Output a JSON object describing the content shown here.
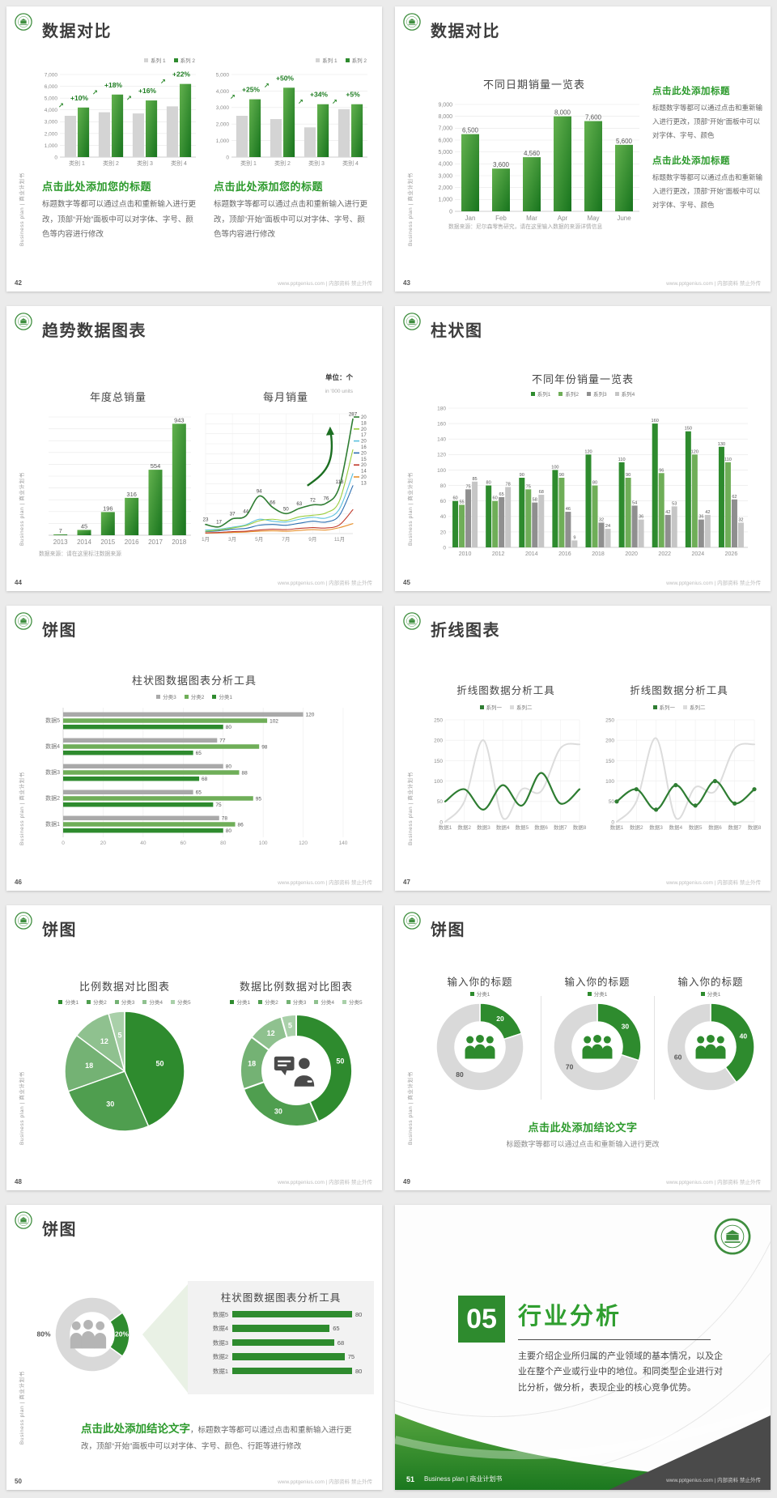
{
  "footer_url": "www.pptgenius.com | 内部资料 禁止外传",
  "sidebar_text": "Business plan | 商业计划书",
  "colors": {
    "green": "#2e8b2e",
    "green_medium": "#6fae58",
    "gray_bar": "#d4d4d4",
    "gray_dark": "#8f8f8f",
    "heading_green": "#2c9a2c",
    "dark_band": "#4a4a4a"
  },
  "slides": [
    {
      "page_num": "42",
      "title": "数据对比",
      "blocks": [
        {
          "heading": "点击此处添加您的标题",
          "body": "标题数字等都可以通过点击和重新输入进行更改，顶部“开始”面板中可以对字体、字号、颜色等内容进行修改"
        },
        {
          "heading": "点击此处添加您的标题",
          "body": "标题数字等都可以通过点击和重新输入进行更改，顶部“开始”面板中可以对字体、字号、颜色等内容进行修改"
        }
      ],
      "chart_data": [
        {
          "type": "bar",
          "legend": [
            "系列 1",
            "系列 2"
          ],
          "ylim": [
            0,
            7000
          ],
          "ystep": 1000,
          "categories": [
            "类别 1",
            "类别 2",
            "类别 3",
            "类别 4"
          ],
          "series": [
            {
              "name": "系列 1",
              "color": "#d4d4d4",
              "values": [
                3500,
                3800,
                3700,
                4300
              ]
            },
            {
              "name": "系列 2",
              "color": "gradient-green",
              "values": [
                4200,
                5300,
                4800,
                6200
              ]
            }
          ],
          "percent_labels": [
            "+10%",
            "+18%",
            "+16%",
            "+22%"
          ]
        },
        {
          "type": "bar",
          "legend": [
            "系列 1",
            "系列 2"
          ],
          "ylim": [
            0,
            5000
          ],
          "ystep": 1000,
          "categories": [
            "类别 1",
            "类别 2",
            "类别 3",
            "类别 4"
          ],
          "series": [
            {
              "name": "系列 1",
              "color": "#d4d4d4",
              "values": [
                2500,
                2300,
                1800,
                2900
              ]
            },
            {
              "name": "系列 2",
              "color": "gradient-green",
              "values": [
                3500,
                4200,
                3200,
                3200
              ]
            }
          ],
          "percent_labels": [
            "+25%",
            "+50%",
            "+34%",
            "+5%"
          ]
        }
      ]
    },
    {
      "page_num": "43",
      "title": "数据对比",
      "note": "数据来源：尼尔森零售研究，请在这里输入数据的来源详情信息",
      "blocks": [
        {
          "heading": "点击此处添加标题",
          "body": "标题数字等都可以通过点击和重新输入进行更改，顶部“开始”面板中可以对字体、字号、颜色"
        },
        {
          "heading": "点击此处添加标题",
          "body": "标题数字等都可以通过点击和重新输入进行更改，顶部“开始”面板中可以对字体、字号、颜色"
        }
      ],
      "chart_data": {
        "type": "bar",
        "title": "不同日期销量一览表",
        "ylim": [
          0,
          9000
        ],
        "ystep": 1000,
        "categories": [
          "Jan",
          "Feb",
          "Mar",
          "Apr",
          "May",
          "June"
        ],
        "values": [
          6500,
          3600,
          4560,
          8000,
          7600,
          5600
        ],
        "value_labels": [
          "6,500",
          "3,600",
          "4,560",
          "8,000",
          "7,600",
          "5,600"
        ]
      }
    },
    {
      "page_num": "44",
      "title": "趋势数据图表",
      "unit_label": "单位：个",
      "unit_sub": "in '000 units",
      "note": "数据来源：请在这里标注数据来源",
      "chart_data": [
        {
          "type": "bar",
          "title": "年度总销量",
          "ylim": [
            0,
            1000
          ],
          "ystep": 100,
          "categories": [
            "2013",
            "2014",
            "2015",
            "2016",
            "2017",
            "2018"
          ],
          "values": [
            7,
            45,
            196,
            316,
            554,
            943
          ]
        },
        {
          "type": "line",
          "title": "每月销量",
          "ylim": [
            0,
            300
          ],
          "x_ticks": [
            "1月",
            "3月",
            "5月",
            "7月",
            "9月",
            "11月"
          ],
          "trend_arrow": true,
          "series": [
            {
              "name": "系列1",
              "color": "#2e7d32",
              "width": 1.6,
              "show_labels": true,
              "values": [
                23,
                17,
                37,
                44,
                94,
                66,
                50,
                63,
                72,
                76,
                118,
                287
              ]
            },
            {
              "name": "系列2",
              "color": "#9acd3c",
              "width": 1.1,
              "values": [
                6,
                9,
                14,
                20,
                32,
                36,
                33,
                42,
                46,
                52,
                82,
                210
              ]
            },
            {
              "name": "系列3",
              "color": "#5bc0de",
              "width": 1.1,
              "values": [
                9,
                11,
                16,
                22,
                36,
                31,
                29,
                36,
                41,
                39,
                62,
                150
              ]
            },
            {
              "name": "系列4",
              "color": "#2a6db0",
              "width": 1.1,
              "values": [
                5,
                7,
                11,
                13,
                21,
                23,
                21,
                26,
                31,
                29,
                46,
                120
              ]
            },
            {
              "name": "系列5",
              "color": "#c0392b",
              "width": 1.1,
              "values": [
                2,
                3,
                5,
                6,
                9,
                11,
                10,
                13,
                15,
                14,
                22,
                60
              ]
            },
            {
              "name": "系列6",
              "color": "#e8912d",
              "width": 1.1,
              "values": [
                1,
                2,
                3,
                4,
                6,
                7,
                6,
                8,
                10,
                9,
                15,
                25
              ]
            }
          ],
          "end_labels": [
            {
              "text": "20",
              "color": "#2e7d32"
            },
            {
              "text": "18"
            },
            {
              "text": "20",
              "color": "#9acd3c"
            },
            {
              "text": "17"
            },
            {
              "text": "20",
              "color": "#5bc0de"
            },
            {
              "text": "16"
            },
            {
              "text": "20",
              "color": "#2a6db0"
            },
            {
              "text": "15"
            },
            {
              "text": "20",
              "color": "#c0392b"
            },
            {
              "text": "14"
            },
            {
              "text": "20",
              "color": "#e8912d"
            },
            {
              "text": "13"
            }
          ]
        }
      ]
    },
    {
      "page_num": "45",
      "title": "柱状图",
      "chart_data": {
        "type": "bar",
        "title": "不同年份销量一览表",
        "legend": [
          "系列1",
          "系列2",
          "系列3",
          "系列4"
        ],
        "ylim": [
          0,
          180
        ],
        "ystep": 20,
        "categories": [
          "2010",
          "2012",
          "2014",
          "2016",
          "2018",
          "2020",
          "2022",
          "2024",
          "2026"
        ],
        "series": [
          {
            "name": "系列1",
            "color": "#2e8b2e",
            "values": [
              60,
              80,
              90,
              100,
              120,
              110,
              160,
              150,
              130
            ]
          },
          {
            "name": "系列2",
            "color": "#6fae58",
            "values": [
              55,
              60,
              75,
              90,
              80,
              90,
              96,
              120,
              110
            ]
          },
          {
            "name": "系列3",
            "color": "#8f8f8f",
            "values": [
              75,
              65,
              58,
              46,
              32,
              54,
              42,
              36,
              62
            ]
          },
          {
            "name": "系列4",
            "color": "#c6c6c6",
            "values": [
              85,
              78,
              68,
              9,
              24,
              36,
              53,
              42,
              32
            ]
          }
        ]
      }
    },
    {
      "page_num": "46",
      "title": "饼图",
      "chart_data": {
        "type": "hbar",
        "title": "柱状图数据图表分析工具",
        "legend": [
          "分类3",
          "分类2",
          "分类1"
        ],
        "xlim": [
          0,
          140
        ],
        "xstep": 20,
        "categories": [
          "数据5",
          "数据4",
          "数据3",
          "数据2",
          "数据1"
        ],
        "series": [
          {
            "name": "分类3",
            "color": "#a9a9a9",
            "values": [
              120,
              77,
              80,
              65,
              78
            ]
          },
          {
            "name": "分类2",
            "color": "#6fae58",
            "values": [
              102,
              98,
              88,
              95,
              86
            ]
          },
          {
            "name": "分类1",
            "color": "#2e8b2e",
            "values": [
              80,
              65,
              68,
              75,
              80
            ]
          }
        ]
      }
    },
    {
      "page_num": "47",
      "title": "折线图表",
      "chart_data": [
        {
          "type": "line",
          "title": "折线图数据分析工具",
          "legend": [
            "系列一",
            "系列二"
          ],
          "ylim": [
            0,
            250
          ],
          "ystep": 50,
          "categories": [
            "数据1",
            "数据2",
            "数据3",
            "数据4",
            "数据5",
            "数据6",
            "数据7",
            "数据8"
          ],
          "series": [
            {
              "name": "系列一",
              "color": "#2e7d32",
              "width": 2.2,
              "values": [
                50,
                80,
                30,
                90,
                40,
                120,
                45,
                80
              ]
            },
            {
              "name": "系列二",
              "color": "#dcdcdc",
              "width": 2,
              "values": [
                0,
                50,
                200,
                10,
                80,
                75,
                180,
                190
              ]
            }
          ]
        },
        {
          "type": "line",
          "title": "折线图数据分析工具",
          "legend": [
            "系列一",
            "系列二"
          ],
          "ylim": [
            0,
            250
          ],
          "ystep": 50,
          "markers": true,
          "categories": [
            "数据1",
            "数据2",
            "数据3",
            "数据4",
            "数据5",
            "数据6",
            "数据7",
            "数据8"
          ],
          "series": [
            {
              "name": "系列一",
              "color": "#2e7d32",
              "width": 2.2,
              "values": [
                50,
                80,
                30,
                90,
                40,
                100,
                45,
                80
              ]
            },
            {
              "name": "系列二",
              "color": "#dcdcdc",
              "width": 2,
              "values": [
                0,
                50,
                205,
                10,
                85,
                75,
                180,
                190
              ]
            }
          ]
        }
      ]
    },
    {
      "page_num": "48",
      "title": "饼图",
      "chart_data": [
        {
          "type": "pie",
          "title": "比例数据对比图表",
          "legend": [
            "分类1",
            "分类2",
            "分类3",
            "分类4",
            "分类5"
          ],
          "values": [
            50,
            30,
            18,
            12,
            5
          ],
          "colors": [
            "#2e8b2e",
            "#4f9e4f",
            "#74b274",
            "#8fc18f",
            "#a9d0a9"
          ]
        },
        {
          "type": "donut",
          "title": "数据比例数据对比图表",
          "legend": [
            "分类1",
            "分类2",
            "分类3",
            "分类4",
            "分类5"
          ],
          "values": [
            50,
            30,
            18,
            12,
            5
          ],
          "colors": [
            "#2e8b2e",
            "#4f9e4f",
            "#74b274",
            "#8fc18f",
            "#a9d0a9"
          ],
          "center_icon": "presenter-icon"
        }
      ]
    },
    {
      "page_num": "49",
      "title": "饼图",
      "conclusion": {
        "heading": "点击此处添加结论文字",
        "sub": "标题数字等都可以通过点击和重新输入进行更改"
      },
      "chart_data": [
        {
          "type": "donut",
          "title": "输入你的标题",
          "legend": [
            "分类1"
          ],
          "values": [
            20,
            80
          ],
          "colors": [
            "#2e8b2e",
            "#d9d9d9"
          ],
          "center_icon": "people-icon"
        },
        {
          "type": "donut",
          "title": "输入你的标题",
          "legend": [
            "分类1"
          ],
          "values": [
            30,
            70
          ],
          "colors": [
            "#2e8b2e",
            "#d9d9d9"
          ],
          "center_icon": "people-icon"
        },
        {
          "type": "donut",
          "title": "输入你的标题",
          "legend": [
            "分类1"
          ],
          "values": [
            40,
            60
          ],
          "colors": [
            "#2e8b2e",
            "#d9d9d9"
          ],
          "center_icon": "people-icon"
        }
      ]
    },
    {
      "page_num": "50",
      "title": "饼图",
      "chart_data": {
        "type": "donut",
        "values": [
          20,
          80
        ],
        "labels": [
          "20%",
          "80%"
        ],
        "colors": [
          "#2e8b2e",
          "#d9d9d9"
        ],
        "center_icon": "people-icon-gray"
      },
      "panel": {
        "title": "柱状图数据图表分析工具",
        "categories": [
          "数据5",
          "数据4",
          "数据3",
          "数据2",
          "数据1"
        ],
        "values": [
          80,
          65,
          68,
          75,
          80
        ]
      },
      "conclusion_heading": "点击此处添加结论文字",
      "conclusion_body": "，标题数字等都可以通过点击和重新输入进行更改，顶部“开始”面板中可以对字体、字号、颜色、行距等进行修改"
    },
    {
      "page_num": "51",
      "section_number": "05",
      "section_title": "行业分析",
      "body": "主要介绍企业所归属的产业领域的基本情况，以及企业在整个产业或行业中的地位。和同类型企业进行对比分析，做分析，表现企业的核心竞争优势。",
      "footer_label": "Business plan | 商业计划书"
    }
  ]
}
